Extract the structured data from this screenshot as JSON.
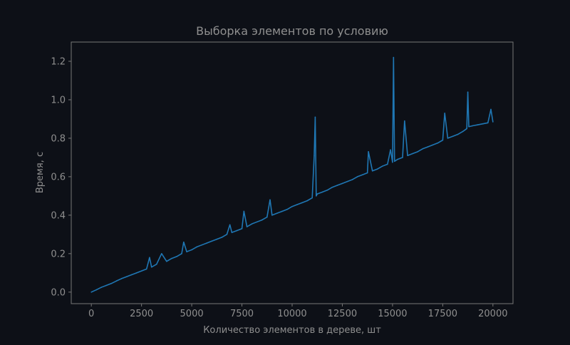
{
  "chart_data": {
    "type": "line",
    "title": "Выборка элементов по условию",
    "xlabel": "Количество элементов в дереве, шт",
    "ylabel": "Время, с",
    "xlim": [
      -1000,
      21000
    ],
    "ylim": [
      -0.06,
      1.3
    ],
    "xticks": [
      0,
      2500,
      5000,
      7500,
      10000,
      12500,
      15000,
      17500,
      20000
    ],
    "xtick_labels": [
      "0",
      "2500",
      "5000",
      "7500",
      "10000",
      "12500",
      "15000",
      "17500",
      "20000"
    ],
    "yticks": [
      0.0,
      0.2,
      0.4,
      0.6,
      0.8,
      1.0,
      1.2
    ],
    "ytick_labels": [
      "0.0",
      "0.2",
      "0.4",
      "0.6",
      "0.8",
      "1.0",
      "1.2"
    ],
    "grid": false,
    "legend": "none",
    "series": [
      {
        "color": "#1f77b4",
        "x": [
          0,
          250,
          500,
          750,
          1000,
          1250,
          1500,
          1750,
          2000,
          2250,
          2500,
          2750,
          2900,
          3000,
          3250,
          3500,
          3750,
          4000,
          4250,
          4500,
          4600,
          4750,
          5000,
          5250,
          5500,
          5750,
          6000,
          6250,
          6500,
          6750,
          6900,
          7000,
          7250,
          7500,
          7600,
          7750,
          8000,
          8250,
          8500,
          8750,
          8900,
          9000,
          9250,
          9500,
          9750,
          10000,
          10250,
          10500,
          10750,
          11000,
          11100,
          11150,
          11200,
          11250,
          11500,
          11750,
          12000,
          12250,
          12500,
          12750,
          13000,
          13250,
          13500,
          13750,
          13800,
          14000,
          14250,
          14500,
          14750,
          14900,
          15000,
          15050,
          15100,
          15250,
          15500,
          15600,
          15750,
          16000,
          16250,
          16500,
          16750,
          17000,
          17250,
          17500,
          17600,
          17750,
          18000,
          18250,
          18500,
          18700,
          18750,
          18800,
          19000,
          19250,
          19500,
          19750,
          19900,
          20000
        ],
        "y": [
          0.0,
          0.012,
          0.025,
          0.035,
          0.045,
          0.058,
          0.07,
          0.08,
          0.09,
          0.1,
          0.11,
          0.12,
          0.18,
          0.13,
          0.145,
          0.2,
          0.16,
          0.175,
          0.185,
          0.2,
          0.26,
          0.21,
          0.22,
          0.235,
          0.245,
          0.255,
          0.265,
          0.275,
          0.285,
          0.3,
          0.35,
          0.31,
          0.32,
          0.33,
          0.42,
          0.34,
          0.355,
          0.365,
          0.375,
          0.39,
          0.48,
          0.4,
          0.41,
          0.42,
          0.43,
          0.445,
          0.455,
          0.465,
          0.475,
          0.49,
          0.71,
          0.91,
          0.5,
          0.51,
          0.52,
          0.53,
          0.545,
          0.555,
          0.565,
          0.575,
          0.585,
          0.6,
          0.61,
          0.62,
          0.73,
          0.63,
          0.64,
          0.655,
          0.665,
          0.74,
          0.675,
          1.22,
          0.68,
          0.69,
          0.7,
          0.89,
          0.71,
          0.72,
          0.73,
          0.745,
          0.755,
          0.765,
          0.775,
          0.79,
          0.93,
          0.8,
          0.81,
          0.82,
          0.835,
          0.85,
          1.04,
          0.86,
          0.865,
          0.87,
          0.875,
          0.88,
          0.95,
          0.885
        ]
      }
    ]
  }
}
